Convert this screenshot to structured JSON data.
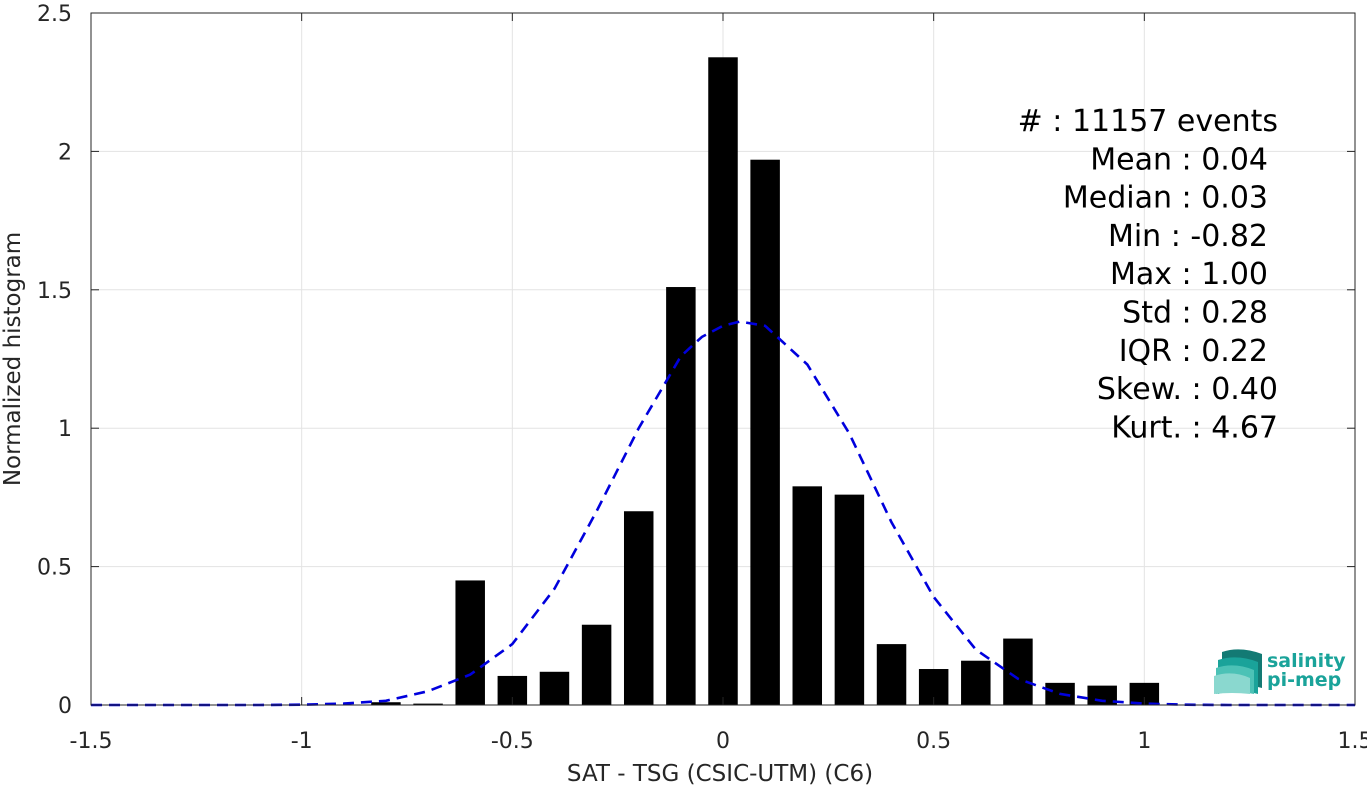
{
  "chart_data": {
    "type": "bar",
    "xlabel": "SAT - TSG (CSIC-UTM) (C6)",
    "ylabel": "Normalized histogram",
    "xlim": [
      -1.5,
      1.5
    ],
    "ylim": [
      0,
      2.5
    ],
    "xticks": [
      -1.5,
      -1,
      -0.5,
      0,
      0.5,
      1,
      1.5
    ],
    "xtick_labels": [
      "-1.5",
      "-1",
      "-0.5",
      "0",
      "0.5",
      "1",
      "1.5"
    ],
    "yticks": [
      0,
      0.5,
      1,
      1.5,
      2,
      2.5
    ],
    "ytick_labels": [
      "0",
      "0.5",
      "1",
      "1.5",
      "2",
      "2.5"
    ],
    "grid": true,
    "bin_width": 0.1,
    "bar_color": "#000000",
    "bars": [
      {
        "x": -0.8,
        "y": 0.01
      },
      {
        "x": -0.7,
        "y": 0.005
      },
      {
        "x": -0.6,
        "y": 0.45
      },
      {
        "x": -0.5,
        "y": 0.105
      },
      {
        "x": -0.4,
        "y": 0.12
      },
      {
        "x": -0.3,
        "y": 0.29
      },
      {
        "x": -0.2,
        "y": 0.7
      },
      {
        "x": -0.1,
        "y": 1.51
      },
      {
        "x": 0.0,
        "y": 2.34
      },
      {
        "x": 0.1,
        "y": 1.97
      },
      {
        "x": 0.2,
        "y": 0.79
      },
      {
        "x": 0.3,
        "y": 0.76
      },
      {
        "x": 0.4,
        "y": 0.22
      },
      {
        "x": 0.5,
        "y": 0.13
      },
      {
        "x": 0.6,
        "y": 0.16
      },
      {
        "x": 0.7,
        "y": 0.24
      },
      {
        "x": 0.8,
        "y": 0.08
      },
      {
        "x": 0.9,
        "y": 0.07
      },
      {
        "x": 1.0,
        "y": 0.08
      }
    ],
    "fit_curve": {
      "style": "dashed",
      "color": "#0000dd",
      "points": [
        [
          -1.5,
          0.0
        ],
        [
          -1.4,
          0.0
        ],
        [
          -1.3,
          0.0
        ],
        [
          -1.2,
          0.0
        ],
        [
          -1.1,
          0.0
        ],
        [
          -1.0,
          0.001
        ],
        [
          -0.9,
          0.005
        ],
        [
          -0.8,
          0.015
        ],
        [
          -0.7,
          0.05
        ],
        [
          -0.6,
          0.11
        ],
        [
          -0.5,
          0.22
        ],
        [
          -0.4,
          0.42
        ],
        [
          -0.3,
          0.7
        ],
        [
          -0.2,
          1.0
        ],
        [
          -0.1,
          1.26
        ],
        [
          -0.05,
          1.33
        ],
        [
          0.0,
          1.37
        ],
        [
          0.04,
          1.385
        ],
        [
          0.1,
          1.37
        ],
        [
          0.2,
          1.23
        ],
        [
          0.3,
          0.98
        ],
        [
          0.4,
          0.66
        ],
        [
          0.5,
          0.39
        ],
        [
          0.6,
          0.2
        ],
        [
          0.7,
          0.095
        ],
        [
          0.8,
          0.04
        ],
        [
          0.9,
          0.015
        ],
        [
          1.0,
          0.005
        ],
        [
          1.1,
          0.001
        ],
        [
          1.2,
          0.0
        ],
        [
          1.3,
          0.0
        ],
        [
          1.4,
          0.0
        ],
        [
          1.5,
          0.0
        ]
      ]
    },
    "annotations": [
      "#  : 11157 events",
      "Mean : 0.04",
      "Median : 0.03",
      "Min : -0.82",
      "Max : 1.00",
      "Std : 0.28",
      "IQR : 0.22",
      "Skew. : 0.40",
      "Kurt. : 4.67"
    ]
  },
  "logo": {
    "line1": "salinity",
    "line2": "pi-mep",
    "color": "#1aa39a"
  }
}
